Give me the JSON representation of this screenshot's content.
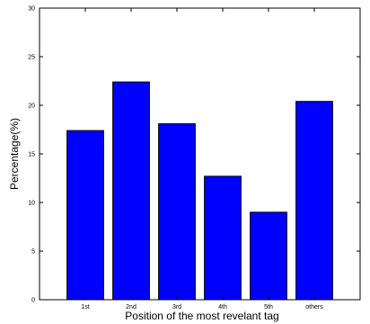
{
  "chart_data": {
    "type": "bar",
    "categories": [
      "1st",
      "2nd",
      "3rd",
      "4th",
      "5th",
      "others"
    ],
    "values": [
      17.4,
      22.4,
      18.1,
      12.7,
      9.0,
      20.4
    ],
    "xlabel": "Position of the most revelant tag",
    "ylabel": "Percentage(%)",
    "ylim": [
      0,
      30
    ],
    "yticks": [
      0,
      5,
      10,
      15,
      20,
      25,
      30
    ],
    "grid": false,
    "bar_color": "#0000ff",
    "edge_color": "#000000"
  }
}
